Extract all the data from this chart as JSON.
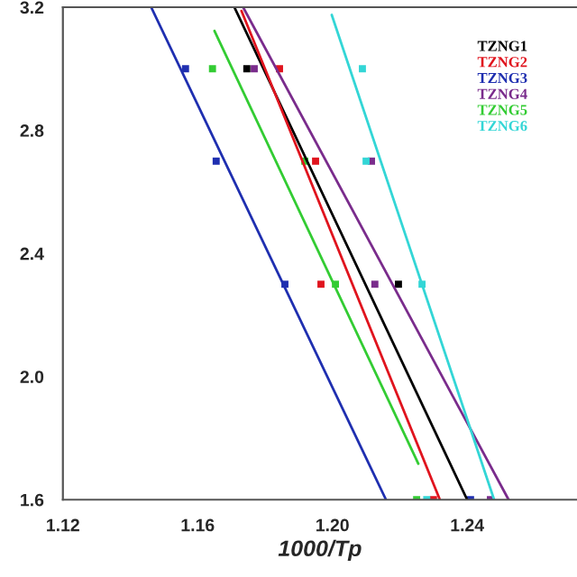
{
  "chart_data": {
    "type": "scatter",
    "xlabel": "1000/Tp",
    "xlim": [
      1.12,
      1.2726
    ],
    "xticks": [
      1.12,
      1.16,
      {
        "value": 1.2,
        "label": "1.20"
      },
      1.24
    ],
    "ylim": [
      1.6,
      3.2
    ],
    "yticks": [
      1.6,
      {
        "value": 2.0,
        "label": "2.0"
      },
      2.4,
      2.8,
      3.2
    ],
    "grid": false,
    "legend": "top right",
    "series": [
      {
        "name": "TZNG1",
        "marker": "square",
        "color": "#000000",
        "x": [
          1.1746,
          1.2196
        ],
        "values": [
          3.0,
          2.3
        ]
      },
      {
        "name": "TZNG2",
        "marker": "square",
        "color": "#e0141e",
        "x": [
          1.1843,
          1.195,
          1.1966,
          1.23
        ],
        "values": [
          3.0,
          2.7,
          2.3,
          1.6
        ]
      },
      {
        "name": "TZNG3",
        "marker": "square",
        "color": "#1f2fb0",
        "x": [
          1.1564,
          1.1655,
          1.1859,
          1.241
        ],
        "values": [
          3.0,
          2.7,
          2.3,
          1.6
        ]
      },
      {
        "name": "TZNG4",
        "marker": "square",
        "color": "#7a2c8c",
        "x": [
          1.1768,
          1.2116,
          1.2126,
          1.2469
        ],
        "values": [
          3.0,
          2.7,
          2.3,
          1.6
        ]
      },
      {
        "name": "TZNG5",
        "marker": "square",
        "color": "#33cc33",
        "x": [
          1.1644,
          1.1918,
          1.2009,
          1.225
        ],
        "values": [
          3.0,
          2.7,
          2.3,
          1.6
        ]
      },
      {
        "name": "TZNG6",
        "marker": "square",
        "color": "#33d6d6",
        "x": [
          1.2089,
          1.21,
          1.2266,
          1.228
        ],
        "values": [
          3.0,
          2.7,
          2.3,
          1.6
        ]
      },
      {
        "type": "line",
        "color": "#000000",
        "x": [
          1.1709,
          1.24
        ],
        "values": [
          3.2,
          1.6
        ]
      },
      {
        "type": "line",
        "color": "#e0141e",
        "x": [
          1.173,
          1.2319
        ],
        "values": [
          3.188,
          1.6
        ]
      },
      {
        "type": "line",
        "color": "#1f2fb0",
        "x": [
          1.1462,
          1.2159
        ],
        "values": [
          3.2,
          1.6
        ]
      },
      {
        "type": "line",
        "color": "#7a2c8c",
        "x": [
          1.1735,
          1.2523
        ],
        "values": [
          3.2,
          1.6
        ]
      },
      {
        "type": "line",
        "color": "#33cc33",
        "x": [
          1.165,
          1.2255
        ],
        "values": [
          3.123,
          1.717
        ]
      },
      {
        "type": "line",
        "color": "#33d6d6",
        "x": [
          1.1998,
          1.248
        ],
        "values": [
          3.175,
          1.6
        ]
      }
    ]
  }
}
